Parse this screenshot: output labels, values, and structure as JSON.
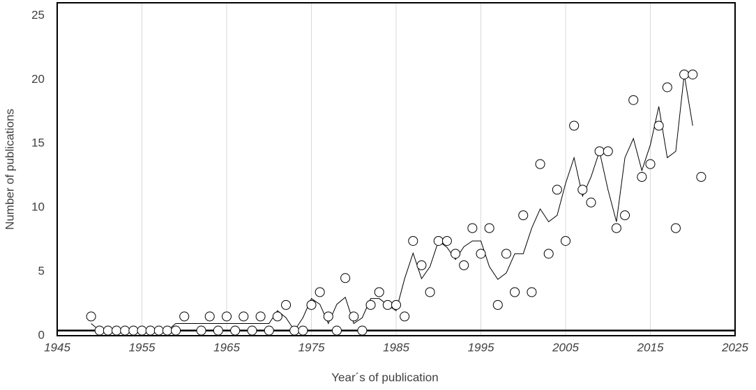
{
  "chart_data": {
    "type": "scatter",
    "x_label": "Year´s of publication",
    "y_label": "Number of publications",
    "xlim": [
      1945,
      2025
    ],
    "xticks": [
      1945,
      1955,
      1965,
      1975,
      1985,
      1995,
      2005,
      2015,
      2025
    ],
    "ylim": [
      0,
      26
    ],
    "yticks": [
      0,
      5,
      10,
      15,
      20,
      25
    ],
    "grid": "x",
    "reference_line": 0.4,
    "series": [
      {
        "kind": "points",
        "color": "#000000",
        "x": [
          1949,
          1950,
          1951,
          1952,
          1953,
          1954,
          1955,
          1956,
          1957,
          1958,
          1959,
          1960,
          1962,
          1963,
          1964,
          1965,
          1966,
          1967,
          1968,
          1969,
          1970,
          1971,
          1972,
          1973,
          1974,
          1975,
          1976,
          1977,
          1978,
          1979,
          1980,
          1981,
          1982,
          1983,
          1984,
          1985,
          1986,
          1987,
          1988,
          1989,
          1990,
          1991,
          1992,
          1993,
          1994,
          1995,
          1996,
          1997,
          1998,
          1999,
          2000,
          2001,
          2002,
          2003,
          2004,
          2005,
          2006,
          2007,
          2008,
          2009,
          2010,
          2011,
          2012,
          2013,
          2014,
          2015,
          2016,
          2017,
          2018,
          2019,
          2020,
          2021
        ],
        "values": [
          1.5,
          0.4,
          0.4,
          0.4,
          0.4,
          0.4,
          0.4,
          0.4,
          0.4,
          0.4,
          0.4,
          1.5,
          0.4,
          1.5,
          0.4,
          1.5,
          0.4,
          1.5,
          0.4,
          1.5,
          0.4,
          1.5,
          2.4,
          0.4,
          0.4,
          2.4,
          3.4,
          1.5,
          0.4,
          4.5,
          1.5,
          0.4,
          2.4,
          3.4,
          2.4,
          2.4,
          1.5,
          7.4,
          5.5,
          3.4,
          7.4,
          7.4,
          6.4,
          5.5,
          8.4,
          6.4,
          8.4,
          2.4,
          6.4,
          3.4,
          9.4,
          3.4,
          13.4,
          6.4,
          11.4,
          7.4,
          16.4,
          11.4,
          10.4,
          14.4,
          14.4,
          8.4,
          9.4,
          18.4,
          12.4,
          13.4,
          16.4,
          19.4,
          8.4,
          20.4,
          20.4,
          12.4
        ]
      },
      {
        "kind": "line",
        "color": "#000000",
        "x": [
          1949,
          1950,
          1951,
          1952,
          1953,
          1954,
          1955,
          1956,
          1957,
          1958,
          1959,
          1960,
          1962,
          1963,
          1964,
          1965,
          1966,
          1967,
          1968,
          1969,
          1970,
          1971,
          1972,
          1973,
          1974,
          1975,
          1976,
          1977,
          1978,
          1979,
          1980,
          1981,
          1982,
          1983,
          1984,
          1985,
          1986,
          1987,
          1988,
          1989,
          1990,
          1991,
          1992,
          1993,
          1994,
          1995,
          1996,
          1997,
          1998,
          1999,
          2000,
          2001,
          2002,
          2003,
          2004,
          2005,
          2006,
          2007,
          2008,
          2009,
          2010,
          2011,
          2012,
          2013,
          2014,
          2015,
          2016,
          2017,
          2018,
          2019,
          2020
        ],
        "values": [
          0.95,
          0.4,
          0.4,
          0.4,
          0.4,
          0.4,
          0.4,
          0.4,
          0.4,
          0.4,
          0.95,
          0.95,
          0.95,
          0.95,
          0.95,
          0.95,
          0.95,
          0.95,
          0.95,
          0.95,
          0.95,
          1.95,
          1.4,
          0.4,
          1.4,
          2.9,
          2.45,
          0.95,
          2.45,
          3.0,
          0.95,
          1.4,
          2.9,
          2.9,
          2.4,
          1.95,
          4.45,
          6.45,
          4.45,
          5.4,
          7.4,
          6.9,
          5.95,
          6.95,
          7.4,
          7.4,
          5.4,
          4.4,
          4.9,
          6.4,
          6.4,
          8.4,
          9.9,
          8.9,
          9.4,
          11.9,
          13.9,
          10.9,
          12.4,
          14.4,
          11.4,
          8.9,
          13.9,
          15.4,
          12.9,
          14.9,
          17.9,
          13.9,
          14.4,
          20.4,
          16.4
        ]
      }
    ]
  }
}
